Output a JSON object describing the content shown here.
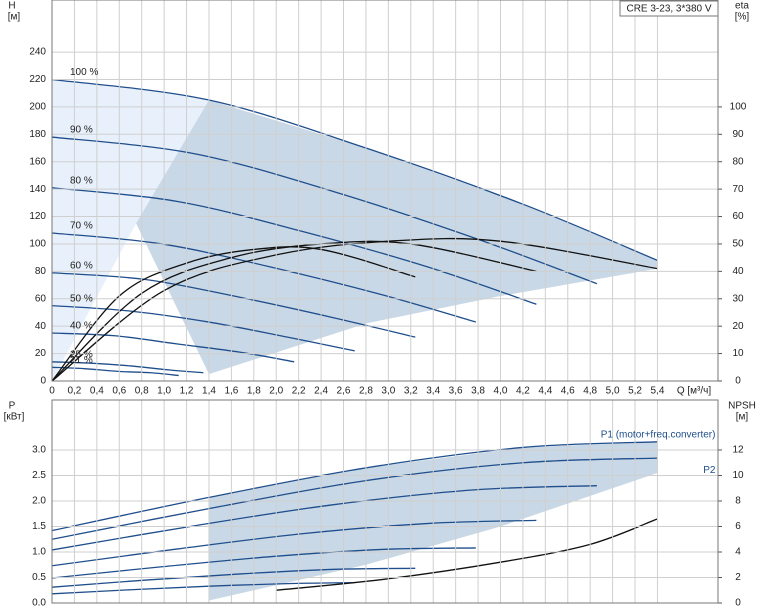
{
  "chart_data": [
    {
      "type": "line",
      "badge": "CRE 3-23, 3*380 V",
      "y_title": "H",
      "y_unit": "[м]",
      "y2_title": "eta",
      "y2_unit": "[%]",
      "x_title": "Q [м³/ч]",
      "xlim": [
        0,
        5.94
      ],
      "ylim": [
        0,
        278
      ],
      "y2lim": [
        0,
        139
      ],
      "grid": true,
      "xticks": [
        0,
        {
          "value": 0.2,
          "label": "0,2"
        },
        {
          "value": 0.4,
          "label": "0,4"
        },
        {
          "value": 0.6,
          "label": "0,6"
        },
        {
          "value": 0.8,
          "label": "0,8"
        },
        {
          "value": 1.0,
          "label": "1,0"
        },
        {
          "value": 1.2,
          "label": "1,2"
        },
        {
          "value": 1.4,
          "label": "1,4"
        },
        {
          "value": 1.6,
          "label": "1,6"
        },
        {
          "value": 1.8,
          "label": "1,8"
        },
        {
          "value": 2.0,
          "label": "2,0"
        },
        {
          "value": 2.2,
          "label": "2,2"
        },
        {
          "value": 2.4,
          "label": "2,4"
        },
        {
          "value": 2.6,
          "label": "2,6"
        },
        {
          "value": 2.8,
          "label": "2,8"
        },
        {
          "value": 3.0,
          "label": "3,0"
        },
        {
          "value": 3.2,
          "label": "3,2"
        },
        {
          "value": 3.4,
          "label": "3,4"
        },
        {
          "value": 3.6,
          "label": "3,6"
        },
        {
          "value": 3.8,
          "label": "3,8"
        },
        {
          "value": 4.0,
          "label": "4,0"
        },
        {
          "value": 4.2,
          "label": "4,2"
        },
        {
          "value": 4.4,
          "label": "4,4"
        },
        {
          "value": 4.6,
          "label": "4,6"
        },
        {
          "value": 4.8,
          "label": "4,8"
        },
        {
          "value": 5.0,
          "label": "5,0"
        },
        {
          "value": 5.2,
          "label": "5,2"
        },
        {
          "value": 5.4,
          "label": "5,4"
        }
      ],
      "yticks": [
        0,
        20,
        40,
        60,
        80,
        100,
        120,
        140,
        160,
        180,
        200,
        220,
        240
      ],
      "y2ticks": [
        0,
        10,
        20,
        30,
        40,
        50,
        60,
        70,
        80,
        90,
        100
      ],
      "regions": [
        {
          "color": "#e8f1fb",
          "x": [
            0,
            0.7,
            1.4,
            0.75,
            0
          ],
          "values": [
            220,
            214,
            205,
            115,
            0
          ]
        },
        {
          "color": "#c9d8e6",
          "x": [
            1.4,
            2.8,
            4.2,
            5.4,
            5.4,
            4.0,
            2.8,
            1.4,
            0.75
          ],
          "values": [
            205,
            170,
            129,
            88,
            82,
            62,
            42,
            5,
            115
          ]
        }
      ],
      "series": [
        {
          "name": "100 %",
          "color": "#1f4e8c",
          "x": [
            0,
            1.4,
            2.8,
            4.2,
            5.4
          ],
          "values": [
            220,
            205,
            170,
            129,
            88
          ]
        },
        {
          "name": "90 %",
          "color": "#1f4e8c",
          "x": [
            0,
            1.26,
            2.52,
            3.78,
            4.86
          ],
          "values": [
            178,
            166,
            138,
            104,
            71
          ]
        },
        {
          "name": "80 %",
          "color": "#1f4e8c",
          "x": [
            0,
            1.12,
            2.24,
            3.36,
            4.32
          ],
          "values": [
            141,
            131,
            109,
            83,
            56
          ]
        },
        {
          "name": "70 %",
          "color": "#1f4e8c",
          "x": [
            0,
            0.98,
            1.96,
            2.94,
            3.78
          ],
          "values": [
            108,
            100,
            83,
            63,
            43
          ]
        },
        {
          "name": "60 %",
          "color": "#1f4e8c",
          "x": [
            0,
            0.84,
            1.68,
            2.52,
            3.24
          ],
          "values": [
            79,
            74,
            61,
            46,
            32
          ]
        },
        {
          "name": "50 %",
          "color": "#1f4e8c",
          "x": [
            0,
            0.7,
            1.4,
            2.1,
            2.7
          ],
          "values": [
            55,
            51,
            43,
            32,
            22
          ]
        },
        {
          "name": "40 %",
          "color": "#1f4e8c",
          "x": [
            0,
            0.56,
            1.12,
            1.68,
            2.16
          ],
          "values": [
            35,
            33,
            27,
            21,
            14
          ]
        },
        {
          "name": "25 %",
          "color": "#1f4e8c",
          "x": [
            0,
            0.35,
            0.7,
            1.05,
            1.35
          ],
          "values": [
            14,
            13,
            11,
            8,
            6
          ]
        },
        {
          "name": "21 %",
          "color": "#1f4e8c",
          "x": [
            0,
            0.29,
            0.59,
            0.88,
            1.13
          ],
          "values": [
            10,
            9,
            7,
            6,
            4
          ]
        },
        {
          "color": "#111111",
          "axis": "y2",
          "x": [
            0,
            1,
            2,
            3,
            4,
            5.4
          ],
          "values": [
            0,
            33,
            46,
            51,
            51,
            41
          ]
        },
        {
          "color": "#111111",
          "axis": "y2",
          "x": [
            0,
            0.8,
            1.6,
            2.4,
            3.2,
            4.32
          ],
          "values": [
            0,
            32,
            45,
            50,
            50,
            40
          ]
        },
        {
          "color": "#111111",
          "axis": "y2",
          "x": [
            0,
            0.6,
            1.2,
            1.8,
            2.4,
            3.24
          ],
          "values": [
            0,
            31,
            43,
            48,
            48,
            38
          ]
        }
      ]
    },
    {
      "type": "line",
      "y_title": "P",
      "y_unit": "[кВт]",
      "y2_title": "NPSH",
      "y2_unit": "[м]",
      "xlim": [
        0,
        5.94
      ],
      "ylim": [
        0,
        3.98
      ],
      "y2lim": [
        0,
        15.92
      ],
      "grid": true,
      "xticks": [
        0,
        0.2,
        0.4,
        0.6,
        0.8,
        1,
        1.2,
        1.4,
        1.6,
        1.8,
        2,
        2.2,
        2.4,
        2.6,
        2.8,
        3,
        3.2,
        3.4,
        3.6,
        3.8,
        4,
        4.2,
        4.4,
        4.6,
        4.8,
        5,
        5.2,
        5.4
      ],
      "yticks": [
        {
          "value": 0,
          "label": "0.0"
        },
        0.5,
        {
          "value": 1,
          "label": "1.0"
        },
        1.5,
        {
          "value": 2,
          "label": "2.0"
        },
        2.5,
        {
          "value": 3,
          "label": "3.0"
        }
      ],
      "y2ticks": [
        0,
        2,
        4,
        6,
        8,
        10,
        12
      ],
      "regions": [
        {
          "color": "#c9d8e6",
          "x": [
            1.4,
            2.8,
            4.2,
            5.4,
            5.4,
            4.0,
            2.8,
            1.4
          ],
          "values": [
            2.07,
            2.65,
            3.05,
            3.16,
            2.55,
            1.5,
            0.75,
            0.05
          ]
        }
      ],
      "series": [
        {
          "name": "P1 (motor+freq.converter)",
          "color": "#1f4e8c",
          "x": [
            0,
            1.4,
            2.8,
            4.2,
            5.4
          ],
          "values": [
            1.42,
            2.07,
            2.65,
            3.05,
            3.16
          ]
        },
        {
          "name": "P2",
          "color": "#1f4e8c",
          "x": [
            0,
            1.4,
            2.8,
            4.2,
            5.4
          ],
          "values": [
            1.25,
            1.85,
            2.4,
            2.75,
            2.84
          ]
        },
        {
          "color": "#1f4e8c",
          "x": [
            0,
            1.26,
            2.52,
            3.78,
            4.86
          ],
          "values": [
            1.04,
            1.51,
            1.93,
            2.22,
            2.3
          ]
        },
        {
          "color": "#1f4e8c",
          "x": [
            0,
            1.12,
            2.24,
            3.36,
            4.32
          ],
          "values": [
            0.73,
            1.06,
            1.36,
            1.56,
            1.62
          ]
        },
        {
          "color": "#1f4e8c",
          "x": [
            0,
            0.98,
            1.96,
            2.94,
            3.78
          ],
          "values": [
            0.49,
            0.71,
            0.91,
            1.05,
            1.08
          ]
        },
        {
          "color": "#1f4e8c",
          "x": [
            0,
            0.84,
            1.68,
            2.52,
            3.24
          ],
          "values": [
            0.31,
            0.45,
            0.57,
            0.66,
            0.68
          ]
        },
        {
          "color": "#1f4e8c",
          "x": [
            0,
            0.7,
            1.4,
            2.1,
            2.7
          ],
          "values": [
            0.18,
            0.26,
            0.33,
            0.38,
            0.4
          ]
        },
        {
          "color": "#111111",
          "axis": "y2",
          "x": [
            2.0,
            3.0,
            4.0,
            4.8,
            5.4
          ],
          "values": [
            1.0,
            1.9,
            3.2,
            4.6,
            6.6
          ]
        }
      ]
    }
  ]
}
